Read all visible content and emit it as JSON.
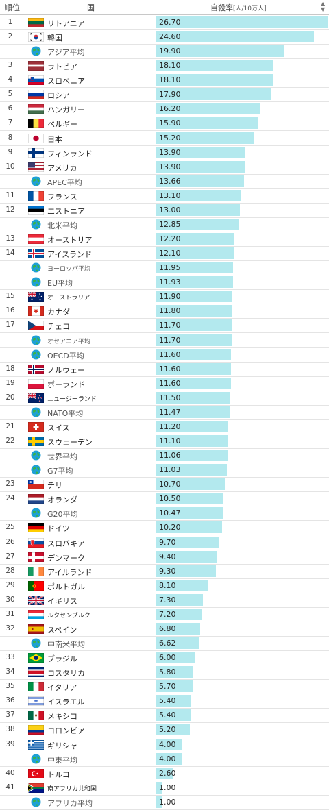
{
  "header": {
    "rank_label": "順位",
    "country_label": "国",
    "value_label": "自殺率",
    "unit_label": "[人/10万人]",
    "sort_icon": "sort-icon"
  },
  "chart_data": {
    "type": "bar",
    "orientation": "horizontal",
    "xlim": [
      0,
      26.7
    ],
    "rows": [
      {
        "rank": "1",
        "name": "リトアニア",
        "value": 26.7,
        "label": "26.70",
        "flag": "lt"
      },
      {
        "rank": "2",
        "name": "韓国",
        "value": 24.6,
        "label": "24.60",
        "flag": "kr"
      },
      {
        "rank": "",
        "name": "アジア平均",
        "value": 19.9,
        "label": "19.90",
        "flag": "globe"
      },
      {
        "rank": "3",
        "name": "ラトビア",
        "value": 18.1,
        "label": "18.10",
        "flag": "lv"
      },
      {
        "rank": "4",
        "name": "スロベニア",
        "value": 18.1,
        "label": "18.10",
        "flag": "si"
      },
      {
        "rank": "5",
        "name": "ロシア",
        "value": 17.9,
        "label": "17.90",
        "flag": "ru"
      },
      {
        "rank": "6",
        "name": "ハンガリー",
        "value": 16.2,
        "label": "16.20",
        "flag": "hu"
      },
      {
        "rank": "7",
        "name": "ベルギー",
        "value": 15.9,
        "label": "15.90",
        "flag": "be"
      },
      {
        "rank": "8",
        "name": "日本",
        "value": 15.2,
        "label": "15.20",
        "flag": "jp"
      },
      {
        "rank": "9",
        "name": "フィンランド",
        "value": 13.9,
        "label": "13.90",
        "flag": "fi"
      },
      {
        "rank": "10",
        "name": "アメリカ",
        "value": 13.9,
        "label": "13.90",
        "flag": "us"
      },
      {
        "rank": "",
        "name": "APEC平均",
        "value": 13.66,
        "label": "13.66",
        "flag": "globe"
      },
      {
        "rank": "11",
        "name": "フランス",
        "value": 13.1,
        "label": "13.10",
        "flag": "fr"
      },
      {
        "rank": "12",
        "name": "エストニア",
        "value": 13.0,
        "label": "13.00",
        "flag": "ee"
      },
      {
        "rank": "",
        "name": "北米平均",
        "value": 12.85,
        "label": "12.85",
        "flag": "globe"
      },
      {
        "rank": "13",
        "name": "オーストリア",
        "value": 12.2,
        "label": "12.20",
        "flag": "at"
      },
      {
        "rank": "14",
        "name": "アイスランド",
        "value": 12.1,
        "label": "12.10",
        "flag": "is"
      },
      {
        "rank": "",
        "name": "ヨーロッパ平均",
        "value": 11.95,
        "label": "11.95",
        "flag": "globe",
        "small": true
      },
      {
        "rank": "",
        "name": "EU平均",
        "value": 11.93,
        "label": "11.93",
        "flag": "globe"
      },
      {
        "rank": "15",
        "name": "オーストラリア",
        "value": 11.9,
        "label": "11.90",
        "flag": "au",
        "small": true
      },
      {
        "rank": "16",
        "name": "カナダ",
        "value": 11.8,
        "label": "11.80",
        "flag": "ca"
      },
      {
        "rank": "17",
        "name": "チェコ",
        "value": 11.7,
        "label": "11.70",
        "flag": "cz"
      },
      {
        "rank": "",
        "name": "オセアニア平均",
        "value": 11.7,
        "label": "11.70",
        "flag": "globe",
        "small": true
      },
      {
        "rank": "",
        "name": "OECD平均",
        "value": 11.6,
        "label": "11.60",
        "flag": "globe"
      },
      {
        "rank": "18",
        "name": "ノルウェー",
        "value": 11.6,
        "label": "11.60",
        "flag": "no"
      },
      {
        "rank": "19",
        "name": "ポーランド",
        "value": 11.6,
        "label": "11.60",
        "flag": "pl"
      },
      {
        "rank": "20",
        "name": "ニュージーランド",
        "value": 11.5,
        "label": "11.50",
        "flag": "nz",
        "small": true
      },
      {
        "rank": "",
        "name": "NATO平均",
        "value": 11.47,
        "label": "11.47",
        "flag": "globe"
      },
      {
        "rank": "21",
        "name": "スイス",
        "value": 11.2,
        "label": "11.20",
        "flag": "ch"
      },
      {
        "rank": "22",
        "name": "スウェーデン",
        "value": 11.1,
        "label": "11.10",
        "flag": "se"
      },
      {
        "rank": "",
        "name": "世界平均",
        "value": 11.06,
        "label": "11.06",
        "flag": "globe"
      },
      {
        "rank": "",
        "name": "G7平均",
        "value": 11.03,
        "label": "11.03",
        "flag": "globe"
      },
      {
        "rank": "23",
        "name": "チリ",
        "value": 10.7,
        "label": "10.70",
        "flag": "cl"
      },
      {
        "rank": "24",
        "name": "オランダ",
        "value": 10.5,
        "label": "10.50",
        "flag": "nl"
      },
      {
        "rank": "",
        "name": "G20平均",
        "value": 10.47,
        "label": "10.47",
        "flag": "globe"
      },
      {
        "rank": "25",
        "name": "ドイツ",
        "value": 10.2,
        "label": "10.20",
        "flag": "de"
      },
      {
        "rank": "26",
        "name": "スロバキア",
        "value": 9.7,
        "label": "9.70",
        "flag": "sk"
      },
      {
        "rank": "27",
        "name": "デンマーク",
        "value": 9.4,
        "label": "9.40",
        "flag": "dk"
      },
      {
        "rank": "28",
        "name": "アイルランド",
        "value": 9.3,
        "label": "9.30",
        "flag": "ie"
      },
      {
        "rank": "29",
        "name": "ポルトガル",
        "value": 8.1,
        "label": "8.10",
        "flag": "pt"
      },
      {
        "rank": "30",
        "name": "イギリス",
        "value": 7.3,
        "label": "7.30",
        "flag": "gb"
      },
      {
        "rank": "31",
        "name": "ルクセンブルク",
        "value": 7.2,
        "label": "7.20",
        "flag": "lu",
        "small": true
      },
      {
        "rank": "32",
        "name": "スペイン",
        "value": 6.8,
        "label": "6.80",
        "flag": "es"
      },
      {
        "rank": "",
        "name": "中南米平均",
        "value": 6.62,
        "label": "6.62",
        "flag": "globe"
      },
      {
        "rank": "33",
        "name": "ブラジル",
        "value": 6.0,
        "label": "6.00",
        "flag": "br"
      },
      {
        "rank": "34",
        "name": "コスタリカ",
        "value": 5.8,
        "label": "5.80",
        "flag": "cr"
      },
      {
        "rank": "35",
        "name": "イタリア",
        "value": 5.7,
        "label": "5.70",
        "flag": "it"
      },
      {
        "rank": "36",
        "name": "イスラエル",
        "value": 5.4,
        "label": "5.40",
        "flag": "il"
      },
      {
        "rank": "37",
        "name": "メキシコ",
        "value": 5.4,
        "label": "5.40",
        "flag": "mx"
      },
      {
        "rank": "38",
        "name": "コロンビア",
        "value": 5.2,
        "label": "5.20",
        "flag": "co"
      },
      {
        "rank": "39",
        "name": "ギリシャ",
        "value": 4.0,
        "label": "4.00",
        "flag": "gr"
      },
      {
        "rank": "",
        "name": "中東平均",
        "value": 4.0,
        "label": "4.00",
        "flag": "globe"
      },
      {
        "rank": "40",
        "name": "トルコ",
        "value": 2.6,
        "label": "2.60",
        "flag": "tr"
      },
      {
        "rank": "41",
        "name": "南アフリカ共和国",
        "value": 1.0,
        "label": "1.00",
        "flag": "za",
        "small": true
      },
      {
        "rank": "",
        "name": "アフリカ平均",
        "value": 1.0,
        "label": "1.00",
        "flag": "globe"
      }
    ]
  }
}
